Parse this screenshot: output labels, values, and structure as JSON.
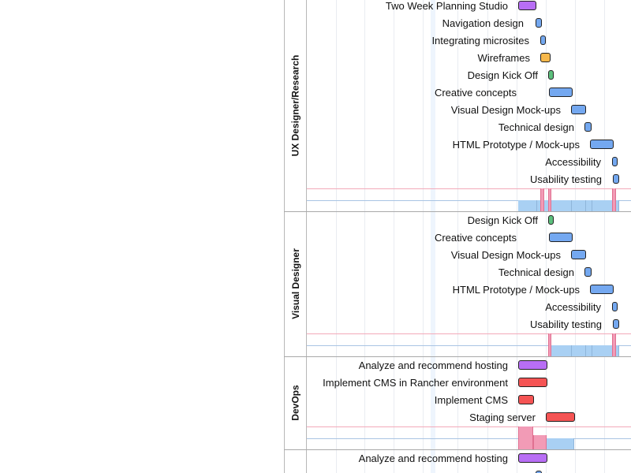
{
  "colors": {
    "purple": "#b86ef5",
    "blue": "#74a8f0",
    "orange": "#f7b84b",
    "green": "#5cc07d",
    "red": "#f55454"
  },
  "groups": [
    {
      "label": "UX Designer/Research",
      "tasks": [
        {
          "label": "Two Week Planning Studio",
          "color": "purple"
        },
        {
          "label": "Navigation design",
          "color": "blue"
        },
        {
          "label": "Integrating microsites",
          "color": "blue"
        },
        {
          "label": "Wireframes",
          "color": "orange"
        },
        {
          "label": "Design Kick Off",
          "color": "green"
        },
        {
          "label": "Creative concepts",
          "color": "blue"
        },
        {
          "label": "Visual Design Mock-ups",
          "color": "blue"
        },
        {
          "label": "Technical design",
          "color": "blue"
        },
        {
          "label": "HTML Prototype / Mock-ups",
          "color": "blue"
        },
        {
          "label": "Accessibility",
          "color": "blue"
        },
        {
          "label": "Usability testing",
          "color": "blue"
        }
      ]
    },
    {
      "label": "Visual Designer",
      "tasks": [
        {
          "label": "Design Kick Off",
          "color": "green"
        },
        {
          "label": "Creative concepts",
          "color": "blue"
        },
        {
          "label": "Visual Design Mock-ups",
          "color": "blue"
        },
        {
          "label": "Technical design",
          "color": "blue"
        },
        {
          "label": "HTML Prototype / Mock-ups",
          "color": "blue"
        },
        {
          "label": "Accessibility",
          "color": "blue"
        },
        {
          "label": "Usability testing",
          "color": "blue"
        }
      ]
    },
    {
      "label": "DevOps",
      "tasks": [
        {
          "label": "Analyze and recommend hosting",
          "color": "purple"
        },
        {
          "label": "Implement CMS in Rancher environment",
          "color": "red"
        },
        {
          "label": "Implement CMS",
          "color": "red"
        },
        {
          "label": "Staging server",
          "color": "red"
        }
      ]
    },
    {
      "label": "",
      "tasks": [
        {
          "label": "Analyze and recommend hosting",
          "color": "purple"
        },
        {
          "label": "",
          "color": "blue"
        }
      ]
    }
  ]
}
